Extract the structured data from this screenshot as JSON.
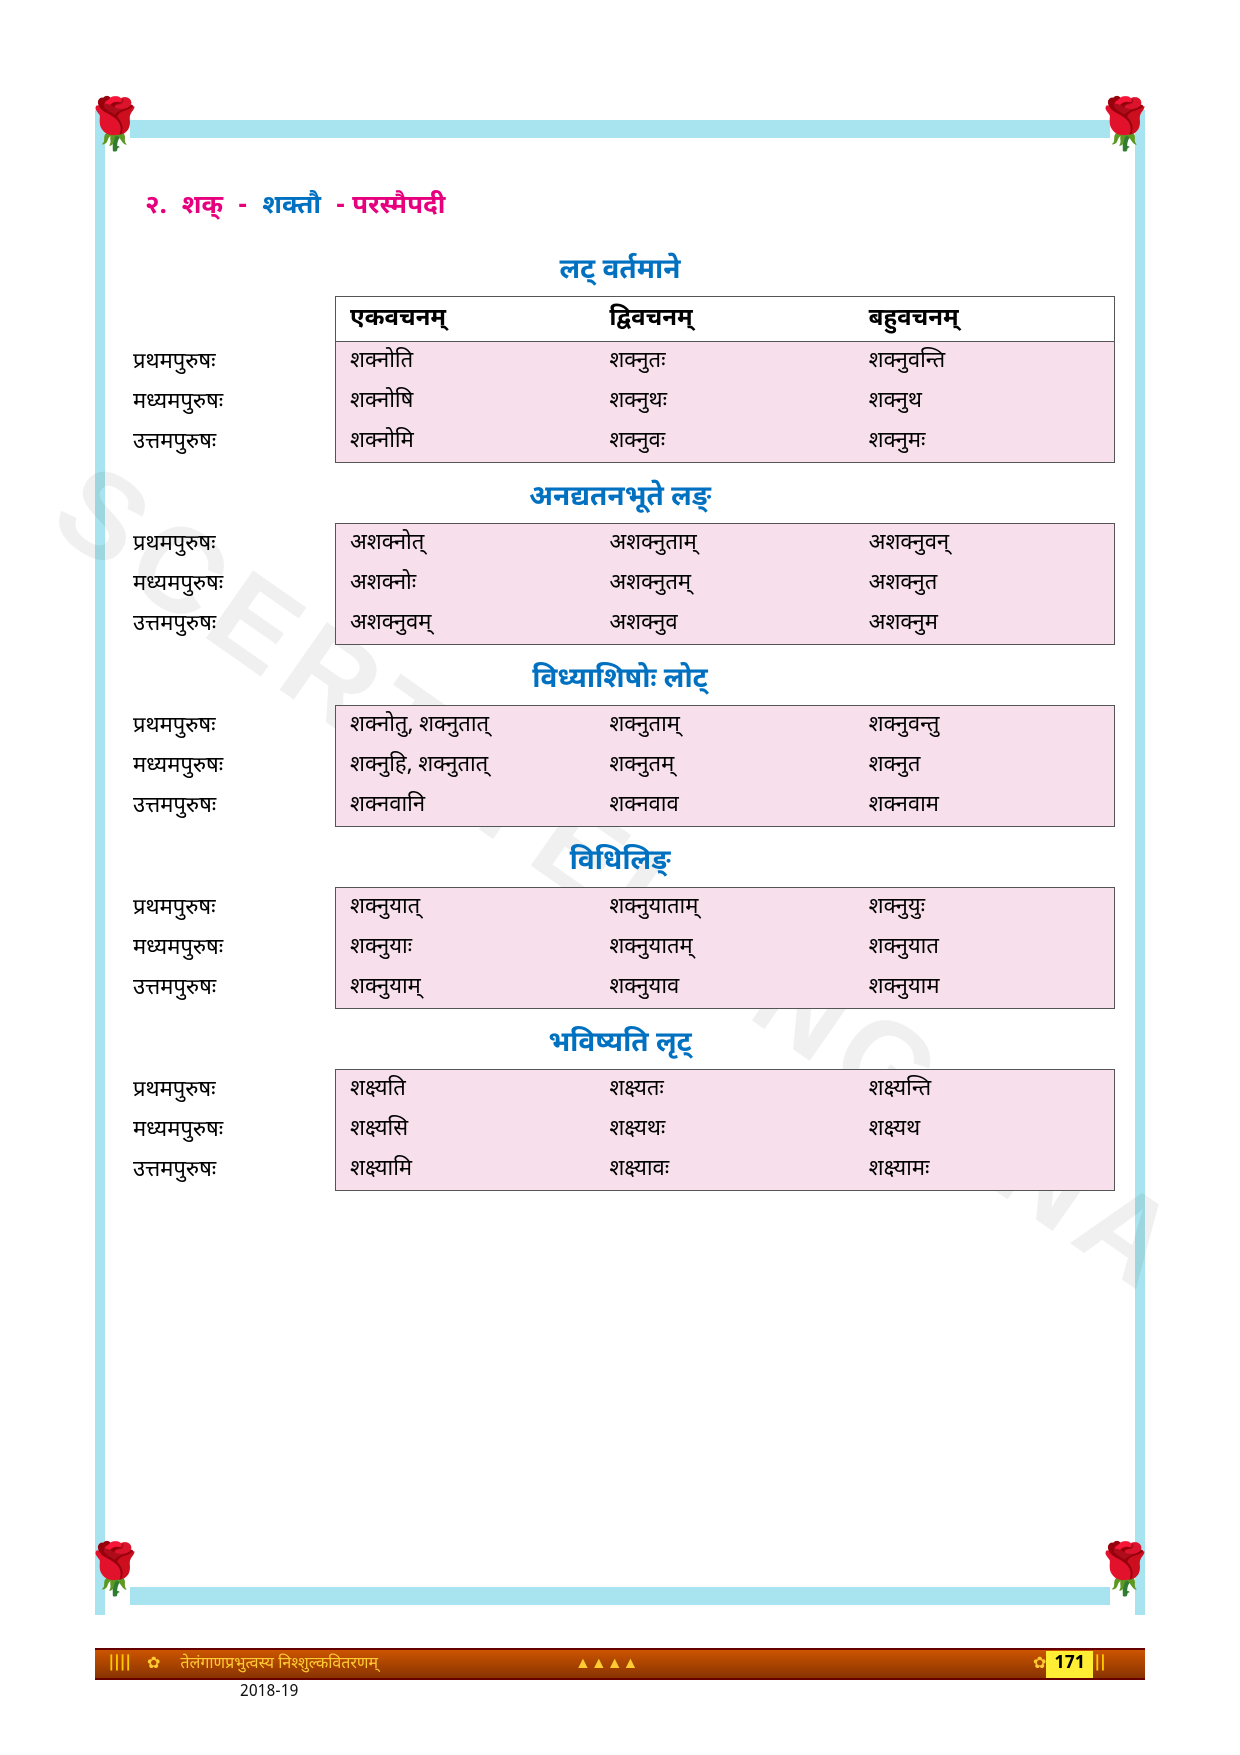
{
  "chapter": {
    "number": "२.",
    "root": "शक्",
    "dash": "-",
    "meaning": "शक्तौ",
    "pada": "परस्मैपदी"
  },
  "columnHeaders": [
    "एकवचनम्",
    "द्विवचनम्",
    "बहुवचनम्"
  ],
  "rowLabels": [
    "प्रथमपुरुषः",
    "मध्यमपुरुषः",
    "उत्तमपुरुषः"
  ],
  "tenses": [
    {
      "title": "लट् वर्तमाने",
      "showHeader": true,
      "rows": [
        [
          "शक्नोति",
          "शक्नुतः",
          "शक्नुवन्ति"
        ],
        [
          "शक्नोषि",
          "शक्नुथः",
          "शक्नुथ"
        ],
        [
          "शक्नोमि",
          "शक्नुवः",
          "शक्नुमः"
        ]
      ]
    },
    {
      "title": "अनद्यतनभूते लङ्",
      "showHeader": false,
      "rows": [
        [
          "अशक्नोत्",
          "अशक्नुताम्",
          "अशक्नुवन्"
        ],
        [
          "अशक्नोः",
          "अशक्नुतम्",
          "अशक्नुत"
        ],
        [
          "अशक्नुवम्",
          "अशक्नुव",
          "अशक्नुम"
        ]
      ]
    },
    {
      "title": "विध्याशिषोः लोट्",
      "showHeader": false,
      "rows": [
        [
          "शक्नोतु, शक्नुतात्",
          "शक्नुताम्",
          "शक्नुवन्तु"
        ],
        [
          "शक्नुहि, शक्नुतात्",
          "शक्नुतम्",
          "शक्नुत"
        ],
        [
          "शक्नवानि",
          "शक्नवाव",
          "शक्नवाम"
        ]
      ]
    },
    {
      "title": "विधिलिङ्",
      "showHeader": false,
      "rows": [
        [
          "शक्नुयात्",
          "शक्नुयाताम्",
          "शक्नुयुः"
        ],
        [
          "शक्नुयाः",
          "शक्नुयातम्",
          "शक्नुयात"
        ],
        [
          "शक्नुयाम्",
          "शक्नुयाव",
          "शक्नुयाम"
        ]
      ]
    },
    {
      "title": "भविष्यति लृट्",
      "showHeader": false,
      "rows": [
        [
          "शक्ष्यति",
          "शक्ष्यतः",
          "शक्ष्यन्ति"
        ],
        [
          "शक्ष्यसि",
          "शक्ष्यथः",
          "शक्ष्यथ"
        ],
        [
          "शक्ष्यामि",
          "शक्ष्यावः",
          "शक्ष्यामः"
        ]
      ]
    }
  ],
  "watermark": "SCERT TELANGANA",
  "footer": {
    "text": "तेलंगाणप्रभुत्वस्य निश्शुल्कवितरणम्",
    "pageNumber": "171",
    "year": "2018-19"
  },
  "colors": {
    "frameBlue": "#a8e4ef",
    "titleBlue": "#0070c0",
    "magenta": "#e6007e",
    "tablePink": "#f7e0eb",
    "footerBg": "#cc5500",
    "pageNumBg": "#ffee33"
  }
}
